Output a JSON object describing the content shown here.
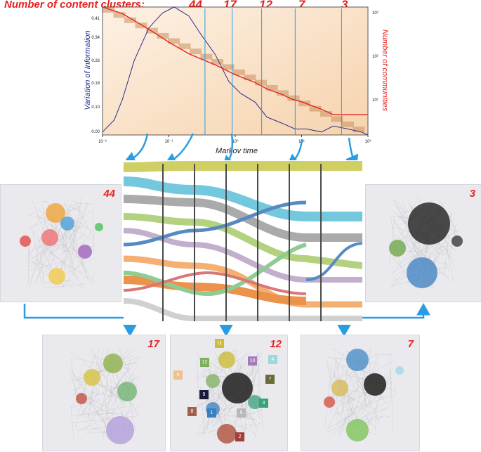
{
  "header": {
    "title": "Number of content clusters:",
    "counts": [
      "44",
      "17",
      "12",
      "7",
      "3"
    ]
  },
  "chart_data": {
    "type": "line",
    "xlabel": "Markov time",
    "ylabel_left": "Variation of Information",
    "ylabel_right": "Number of communities",
    "x_scale": "log",
    "xlim": [
      0.01,
      100
    ],
    "x_tick_labels": [
      "10⁻²",
      "10⁻¹",
      "10⁰",
      "10¹",
      "10²"
    ],
    "ylim_left": [
      0,
      0.43
    ],
    "y_tick_labels_left": [
      "0.00",
      "0.10",
      "0.18",
      "0.26",
      "0.34",
      "0.41"
    ],
    "ylim_right": [
      1,
      1000
    ],
    "y_tick_labels_right": [
      "10³",
      "10²",
      "10¹"
    ],
    "series": [
      {
        "color": "#2b2d8f",
        "x": [
          0.01,
          0.015,
          0.02,
          0.03,
          0.05,
          0.08,
          0.12,
          0.2,
          0.3,
          0.5,
          0.8,
          1.2,
          2,
          3,
          5,
          8,
          12,
          20,
          30,
          50,
          80,
          100
        ],
        "values": [
          0.01,
          0.05,
          0.12,
          0.25,
          0.36,
          0.41,
          0.43,
          0.4,
          0.34,
          0.27,
          0.18,
          0.14,
          0.11,
          0.06,
          0.04,
          0.02,
          0.02,
          0.01,
          0.03,
          0.02,
          0.01,
          0.0
        ]
      },
      {
        "color": "#e8231f",
        "axis": "right",
        "x": [
          0.01,
          0.02,
          0.05,
          0.1,
          0.2,
          0.5,
          1,
          2,
          3,
          5,
          7,
          10,
          20,
          30,
          50,
          100
        ],
        "values": [
          1000,
          700,
          300,
          150,
          80,
          44,
          26,
          17,
          12,
          9,
          7,
          6,
          4,
          3,
          3,
          3
        ]
      }
    ],
    "markers_x": [
      0.35,
      0.9,
      2.5,
      8,
      40
    ]
  },
  "panels": {
    "p44": {
      "label": "44"
    },
    "p3": {
      "label": "3"
    },
    "p17": {
      "label": "17"
    },
    "p12": {
      "label": "12"
    },
    "p7": {
      "label": "7"
    }
  },
  "badges": [
    "11",
    "12",
    "10",
    "4",
    "6",
    "7",
    "9",
    "8",
    "1",
    "5",
    "3",
    "2"
  ],
  "colors": {
    "accent_red": "#e8231f",
    "arrow_blue": "#2a9de2",
    "vi_line": "#2b2d8f"
  }
}
